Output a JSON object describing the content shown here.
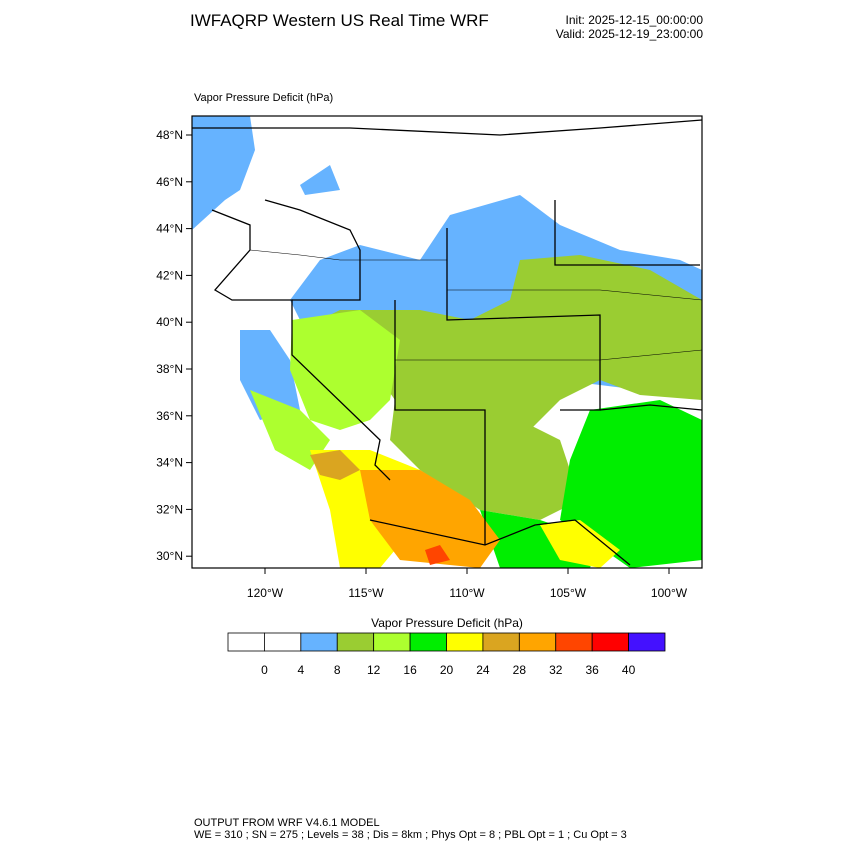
{
  "header": {
    "title": "IWFAQRP Western US Real Time WRF",
    "init": "Init: 2025-12-15_00:00:00",
    "valid": "Valid: 2025-12-19_23:00:00"
  },
  "map": {
    "subtitle": "Vapor Pressure Deficit   (hPa)",
    "lat_ticks": [
      {
        "value": 30,
        "label": "30°N"
      },
      {
        "value": 32,
        "label": "32°N"
      },
      {
        "value": 34,
        "label": "34°N"
      },
      {
        "value": 36,
        "label": "36°N"
      },
      {
        "value": 38,
        "label": "38°N"
      },
      {
        "value": 40,
        "label": "40°N"
      },
      {
        "value": 42,
        "label": "42°N"
      },
      {
        "value": 44,
        "label": "44°N"
      },
      {
        "value": 46,
        "label": "46°N"
      },
      {
        "value": 48,
        "label": "48°N"
      }
    ],
    "lon_ticks": [
      {
        "value": -120,
        "label": "120°W"
      },
      {
        "value": -115,
        "label": "115°W"
      },
      {
        "value": -110,
        "label": "110°W"
      },
      {
        "value": -105,
        "label": "105°W"
      },
      {
        "value": -100,
        "label": "100°W"
      }
    ]
  },
  "colorbar": {
    "title": "Vapor Pressure Deficit  (hPa)",
    "colors": [
      "#ffffff",
      "#ffffff",
      "#66b3ff",
      "#9acd32",
      "#adff2f",
      "#00ee00",
      "#ffff00",
      "#daa520",
      "#ffa500",
      "#ff4500",
      "#ff0000",
      "#4411ff"
    ],
    "levels": [
      0,
      4,
      8,
      12,
      16,
      20,
      24,
      28,
      32,
      36,
      40
    ]
  },
  "footer": {
    "line1": "OUTPUT FROM WRF V4.6.1 MODEL",
    "line2": "WE = 310 ; SN = 275 ; Levels = 38 ; Dis = 8km ; Phys Opt = 8 ; PBL Opt = 1 ; Cu Opt = 3"
  }
}
